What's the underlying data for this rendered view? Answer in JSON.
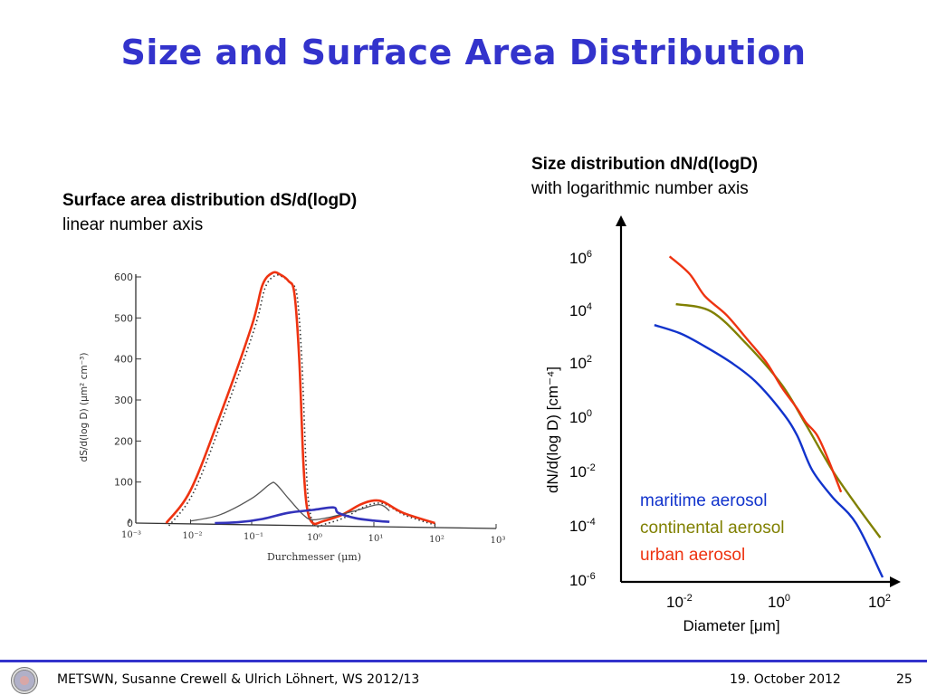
{
  "slide": {
    "title": "Size and Surface Area Distribution",
    "left_caption": {
      "bold": "Surface area distribution dS/d(logD)",
      "normal": "linear number axis"
    },
    "right_caption": {
      "bold": "Size distribution dN/d(logD)",
      "normal": "with logarithmic number axis"
    },
    "footer": {
      "left": "METSWN, Susanne Crewell & Ulrich Löhnert,  WS 2012/13",
      "date": "19. October 2012",
      "page": "25",
      "logo_icon": "university-seal-icon"
    },
    "colors": {
      "title": "#3333cc",
      "footer_rule": "#3333cc"
    }
  },
  "chart_data": [
    {
      "type": "line",
      "title": "Surface area distribution dS/d(logD)",
      "xlabel": "Durchmesser (μm)",
      "ylabel": "dS/d(log D)  (μm² cm⁻³)",
      "xscale": "log",
      "xlim": [
        0.001,
        1000
      ],
      "ylim": [
        0,
        600
      ],
      "xticks": [
        "10⁻³",
        "10⁻²",
        "10⁻¹",
        "10⁰",
        "10¹",
        "10²",
        "10³"
      ],
      "yticks": [
        "0",
        "100",
        "200",
        "300",
        "400",
        "500",
        "600"
      ],
      "grid": false,
      "series": [
        {
          "name": "urban (red overlay)",
          "color": "#ee3311",
          "points": [
            [
              0.004,
              0
            ],
            [
              0.01,
              80
            ],
            [
              0.03,
              260
            ],
            [
              0.1,
              480
            ],
            [
              0.15,
              580
            ],
            [
              0.22,
              610
            ],
            [
              0.3,
              605
            ],
            [
              0.4,
              590
            ],
            [
              0.5,
              560
            ],
            [
              0.6,
              400
            ],
            [
              0.7,
              150
            ],
            [
              0.8,
              40
            ],
            [
              1.0,
              0
            ],
            [
              1.5,
              5
            ],
            [
              3,
              20
            ],
            [
              6,
              45
            ],
            [
              10,
              55
            ],
            [
              15,
              50
            ],
            [
              30,
              25
            ],
            [
              100,
              0
            ]
          ]
        },
        {
          "name": "continental (grey solid)",
          "color": "#555555",
          "points": [
            [
              0.01,
              5
            ],
            [
              0.03,
              20
            ],
            [
              0.1,
              60
            ],
            [
              0.2,
              95
            ],
            [
              0.25,
              95
            ],
            [
              0.4,
              60
            ],
            [
              0.7,
              20
            ],
            [
              1.0,
              8
            ],
            [
              2,
              15
            ],
            [
              5,
              30
            ],
            [
              12,
              45
            ],
            [
              18,
              30
            ]
          ]
        },
        {
          "name": "maritime (blue overlay)",
          "color": "#3333bb",
          "points": [
            [
              0.025,
              0
            ],
            [
              0.06,
              2
            ],
            [
              0.15,
              10
            ],
            [
              0.4,
              25
            ],
            [
              1.0,
              32
            ],
            [
              2.2,
              38
            ],
            [
              2.6,
              25
            ],
            [
              5,
              12
            ],
            [
              10,
              6
            ],
            [
              18,
              3
            ]
          ]
        }
      ]
    },
    {
      "type": "line",
      "title": "Size distribution dN/d(logD)",
      "xlabel": "Diameter [μm]",
      "ylabel": "dN/d(log D) [cm⁻⁴]",
      "xscale": "log",
      "yscale": "log",
      "xlim": [
        0.001,
        100
      ],
      "ylim": [
        1e-06,
        1000000.0
      ],
      "xticks": [
        {
          "base": "10",
          "exp": "-2"
        },
        {
          "base": "10",
          "exp": "0"
        },
        {
          "base": "10",
          "exp": "2"
        }
      ],
      "yticks": [
        {
          "base": "10",
          "exp": "6"
        },
        {
          "base": "10",
          "exp": "4"
        },
        {
          "base": "10",
          "exp": "2"
        },
        {
          "base": "10",
          "exp": "0"
        },
        {
          "base": "10",
          "exp": "-2"
        },
        {
          "base": "10",
          "exp": "-4"
        },
        {
          "base": "10",
          "exp": "-6"
        }
      ],
      "grid": false,
      "legend_position": "bottom-left",
      "series": [
        {
          "name": "maritime aerosol",
          "color": "#1133cc",
          "points": [
            [
              0.003,
              2500.0
            ],
            [
              0.01,
              1200.0
            ],
            [
              0.03,
              400.0
            ],
            [
              0.1,
              100.0
            ],
            [
              0.3,
              20.0
            ],
            [
              1,
              1.5
            ],
            [
              2,
              0.2
            ],
            [
              4,
              0.01
            ],
            [
              10,
              0.001
            ],
            [
              30,
              0.0001
            ],
            [
              100,
              1e-06
            ]
          ]
        },
        {
          "name": "continental aerosol",
          "color": "#808000",
          "points": [
            [
              0.008,
              15000.0
            ],
            [
              0.04,
              8000.0
            ],
            [
              0.2,
              500.0
            ],
            [
              1,
              15.0
            ],
            [
              3,
              0.5
            ],
            [
              10,
              0.01
            ],
            [
              30,
              0.0005
            ],
            [
              90,
              3e-05
            ]
          ]
        },
        {
          "name": "urban aerosol",
          "color": "#ee3311",
          "points": [
            [
              0.006,
              900000.0
            ],
            [
              0.015,
              200000.0
            ],
            [
              0.03,
              30000.0
            ],
            [
              0.08,
              6000.0
            ],
            [
              0.2,
              800.0
            ],
            [
              0.5,
              100.0
            ],
            [
              1,
              12.0
            ],
            [
              2,
              2
            ],
            [
              3,
              0.6
            ],
            [
              5,
              0.2
            ],
            [
              8,
              0.03
            ],
            [
              15,
              0.0015
            ]
          ]
        }
      ]
    }
  ]
}
